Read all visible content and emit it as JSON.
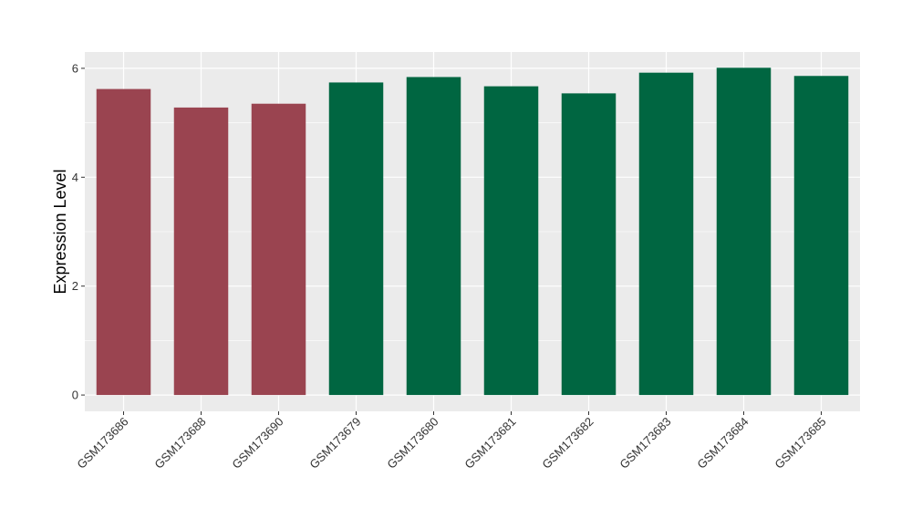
{
  "chart_data": {
    "type": "bar",
    "title": "",
    "xlabel": "",
    "ylabel": "Expression Level",
    "ylim": [
      -0.3,
      6.3
    ],
    "yticks": [
      0,
      2,
      4,
      6
    ],
    "grid": true,
    "categories": [
      "GSM173686",
      "GSM173688",
      "GSM173690",
      "GSM173679",
      "GSM173680",
      "GSM173681",
      "GSM173682",
      "GSM173683",
      "GSM173684",
      "GSM173685"
    ],
    "values": [
      5.62,
      5.28,
      5.35,
      5.74,
      5.84,
      5.67,
      5.54,
      5.92,
      6.01,
      5.86
    ],
    "colors": [
      "#9a4450",
      "#9a4450",
      "#9a4450",
      "#006641",
      "#006641",
      "#006641",
      "#006641",
      "#006641",
      "#006641",
      "#006641"
    ],
    "panel_background": "#ebebeb",
    "gridline_color": "#ffffff"
  }
}
